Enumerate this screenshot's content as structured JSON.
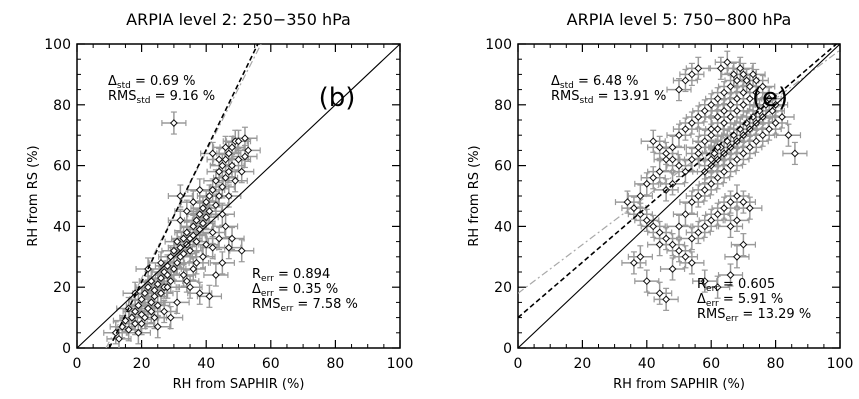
{
  "chart_data": [
    {
      "type": "scatter",
      "title": "ARPIA level 2: 250−350 hPa",
      "panel_label": "(b)",
      "xlabel": "RH from SAPHIR (%)",
      "ylabel": "RH from RS (%)",
      "xlim": [
        0,
        100
      ],
      "ylim": [
        0,
        100
      ],
      "x_ticks": [
        "0",
        "20",
        "40",
        "60",
        "80",
        "100"
      ],
      "y_ticks": [
        "0",
        "20",
        "40",
        "60",
        "80",
        "100"
      ],
      "stats_top": [
        {
          "sym": "Δ",
          "sub": "std",
          "value": "0.69 %"
        },
        {
          "sym": "RMS",
          "sub": "std",
          "value": "9.16 %"
        }
      ],
      "stats_bottom": [
        {
          "sym": "R",
          "sub": "err",
          "value": "0.894"
        },
        {
          "sym": "Δ",
          "sub": "err",
          "value": "0.35 %"
        },
        {
          "sym": "RMS",
          "sub": "err",
          "value": "7.58 %"
        }
      ],
      "lines": {
        "one_to_one": [
          [
            0,
            0
          ],
          [
            100,
            100
          ]
        ],
        "fit_dashed": [
          [
            10,
            0
          ],
          [
            56,
            100
          ]
        ],
        "fit_dashdot": [
          [
            9,
            0
          ],
          [
            57,
            100
          ]
        ]
      },
      "points": [
        [
          12,
          5
        ],
        [
          14,
          7
        ],
        [
          13,
          3
        ],
        [
          15,
          9
        ],
        [
          16,
          6
        ],
        [
          17,
          10
        ],
        [
          18,
          12
        ],
        [
          18,
          8
        ],
        [
          19,
          14
        ],
        [
          20,
          11
        ],
        [
          20,
          16
        ],
        [
          21,
          18
        ],
        [
          22,
          13
        ],
        [
          22,
          20
        ],
        [
          23,
          15
        ],
        [
          23,
          22
        ],
        [
          24,
          17
        ],
        [
          24,
          19
        ],
        [
          25,
          21
        ],
        [
          25,
          14
        ],
        [
          26,
          23
        ],
        [
          26,
          18
        ],
        [
          27,
          25
        ],
        [
          27,
          20
        ],
        [
          28,
          24
        ],
        [
          28,
          27
        ],
        [
          29,
          22
        ],
        [
          29,
          30
        ],
        [
          30,
          26
        ],
        [
          30,
          32
        ],
        [
          31,
          28
        ],
        [
          31,
          35
        ],
        [
          32,
          30
        ],
        [
          32,
          33
        ],
        [
          33,
          36
        ],
        [
          33,
          31
        ],
        [
          34,
          34
        ],
        [
          34,
          38
        ],
        [
          35,
          36
        ],
        [
          35,
          32
        ],
        [
          36,
          40
        ],
        [
          36,
          37
        ],
        [
          37,
          42
        ],
        [
          37,
          35
        ],
        [
          38,
          44
        ],
        [
          38,
          39
        ],
        [
          39,
          46
        ],
        [
          39,
          41
        ],
        [
          40,
          48
        ],
        [
          40,
          43
        ],
        [
          41,
          50
        ],
        [
          41,
          45
        ],
        [
          42,
          52
        ],
        [
          42,
          38
        ],
        [
          43,
          55
        ],
        [
          43,
          47
        ],
        [
          44,
          58
        ],
        [
          44,
          50
        ],
        [
          45,
          60
        ],
        [
          45,
          53
        ],
        [
          46,
          62
        ],
        [
          46,
          56
        ],
        [
          47,
          64
        ],
        [
          47,
          58
        ],
        [
          48,
          66
        ],
        [
          48,
          60
        ],
        [
          49,
          68
        ],
        [
          50,
          62
        ],
        [
          50,
          68
        ],
        [
          52,
          69
        ],
        [
          53,
          65
        ],
        [
          51,
          32
        ],
        [
          30,
          74
        ],
        [
          32,
          50
        ],
        [
          35,
          20
        ],
        [
          38,
          18
        ],
        [
          41,
          17
        ],
        [
          43,
          24
        ],
        [
          45,
          28
        ],
        [
          47,
          33
        ],
        [
          48,
          36
        ],
        [
          27,
          12
        ],
        [
          29,
          10
        ],
        [
          31,
          15
        ],
        [
          24,
          10
        ],
        [
          20,
          8
        ],
        [
          16,
          13
        ],
        [
          22,
          26
        ],
        [
          26,
          28
        ],
        [
          28,
          20
        ],
        [
          33,
          24
        ],
        [
          36,
          26
        ],
        [
          39,
          30
        ],
        [
          42,
          33
        ],
        [
          44,
          36
        ],
        [
          46,
          40
        ],
        [
          40,
          34
        ],
        [
          37,
          28
        ],
        [
          34,
          22
        ],
        [
          21,
          10
        ],
        [
          19,
          5
        ],
        [
          25,
          7
        ],
        [
          23,
          12
        ],
        [
          18,
          18
        ],
        [
          45,
          44
        ],
        [
          47,
          50
        ],
        [
          49,
          55
        ],
        [
          51,
          58
        ],
        [
          52,
          63
        ],
        [
          42,
          64
        ],
        [
          44,
          62
        ],
        [
          46,
          66
        ],
        [
          38,
          52
        ],
        [
          36,
          48
        ],
        [
          34,
          45
        ],
        [
          32,
          42
        ]
      ]
    },
    {
      "type": "scatter",
      "title": "ARPIA level 5: 750−800 hPa",
      "panel_label": "(e)",
      "xlabel": "RH from SAPHIR (%)",
      "ylabel": "RH from RS (%)",
      "xlim": [
        0,
        100
      ],
      "ylim": [
        0,
        100
      ],
      "x_ticks": [
        "0",
        "20",
        "40",
        "60",
        "80",
        "100"
      ],
      "y_ticks": [
        "0",
        "20",
        "40",
        "60",
        "80",
        "100"
      ],
      "stats_top": [
        {
          "sym": "Δ",
          "sub": "std",
          "value": "6.48 %"
        },
        {
          "sym": "RMS",
          "sub": "std",
          "value": "13.91 %"
        }
      ],
      "stats_bottom": [
        {
          "sym": "R",
          "sub": "err",
          "value": "0.605"
        },
        {
          "sym": "Δ",
          "sub": "err",
          "value": "5.91 %"
        },
        {
          "sym": "RMS",
          "sub": "err",
          "value": "13.29 %"
        }
      ],
      "lines": {
        "one_to_one": [
          [
            0,
            0
          ],
          [
            100,
            100
          ]
        ],
        "fit_dashed": [
          [
            0,
            10
          ],
          [
            100,
            101
          ]
        ],
        "fit_dashdot": [
          [
            0,
            18
          ],
          [
            100,
            98
          ]
        ]
      },
      "points": [
        [
          34,
          48
        ],
        [
          36,
          46
        ],
        [
          38,
          44
        ],
        [
          40,
          42
        ],
        [
          42,
          40
        ],
        [
          44,
          38
        ],
        [
          46,
          36
        ],
        [
          48,
          34
        ],
        [
          50,
          32
        ],
        [
          52,
          30
        ],
        [
          54,
          28
        ],
        [
          44,
          34
        ],
        [
          38,
          30
        ],
        [
          36,
          28
        ],
        [
          40,
          22
        ],
        [
          44,
          18
        ],
        [
          46,
          16
        ],
        [
          48,
          26
        ],
        [
          50,
          40
        ],
        [
          52,
          44
        ],
        [
          54,
          48
        ],
        [
          56,
          50
        ],
        [
          58,
          52
        ],
        [
          60,
          54
        ],
        [
          62,
          56
        ],
        [
          64,
          58
        ],
        [
          66,
          60
        ],
        [
          68,
          62
        ],
        [
          70,
          64
        ],
        [
          72,
          66
        ],
        [
          74,
          68
        ],
        [
          76,
          70
        ],
        [
          78,
          72
        ],
        [
          80,
          74
        ],
        [
          86,
          64
        ],
        [
          82,
          76
        ],
        [
          84,
          70
        ],
        [
          60,
          80
        ],
        [
          62,
          82
        ],
        [
          64,
          84
        ],
        [
          66,
          86
        ],
        [
          68,
          88
        ],
        [
          70,
          90
        ],
        [
          58,
          78
        ],
        [
          56,
          76
        ],
        [
          54,
          74
        ],
        [
          52,
          72
        ],
        [
          50,
          70
        ],
        [
          48,
          66
        ],
        [
          46,
          62
        ],
        [
          44,
          58
        ],
        [
          42,
          56
        ],
        [
          40,
          54
        ],
        [
          38,
          50
        ],
        [
          60,
          70
        ],
        [
          62,
          72
        ],
        [
          64,
          74
        ],
        [
          66,
          76
        ],
        [
          68,
          78
        ],
        [
          70,
          80
        ],
        [
          72,
          82
        ],
        [
          74,
          84
        ],
        [
          76,
          86
        ],
        [
          78,
          82
        ],
        [
          80,
          80
        ],
        [
          60,
          60
        ],
        [
          62,
          62
        ],
        [
          64,
          64
        ],
        [
          66,
          66
        ],
        [
          68,
          68
        ],
        [
          70,
          70
        ],
        [
          72,
          72
        ],
        [
          74,
          74
        ],
        [
          76,
          76
        ],
        [
          56,
          66
        ],
        [
          58,
          68
        ],
        [
          60,
          72
        ],
        [
          62,
          76
        ],
        [
          64,
          78
        ],
        [
          66,
          80
        ],
        [
          68,
          82
        ],
        [
          70,
          84
        ],
        [
          72,
          86
        ],
        [
          74,
          88
        ],
        [
          63,
          92
        ],
        [
          65,
          94
        ],
        [
          67,
          90
        ],
        [
          69,
          92
        ],
        [
          71,
          88
        ],
        [
          73,
          90
        ],
        [
          75,
          78
        ],
        [
          77,
          80
        ],
        [
          79,
          78
        ],
        [
          61,
          64
        ],
        [
          63,
          66
        ],
        [
          65,
          68
        ],
        [
          67,
          70
        ],
        [
          69,
          72
        ],
        [
          71,
          74
        ],
        [
          73,
          76
        ],
        [
          58,
          40
        ],
        [
          60,
          42
        ],
        [
          62,
          44
        ],
        [
          64,
          46
        ],
        [
          66,
          48
        ],
        [
          68,
          50
        ],
        [
          70,
          48
        ],
        [
          72,
          46
        ],
        [
          56,
          38
        ],
        [
          54,
          36
        ],
        [
          58,
          22
        ],
        [
          62,
          20
        ],
        [
          66,
          24
        ],
        [
          68,
          30
        ],
        [
          70,
          34
        ],
        [
          66,
          40
        ],
        [
          68,
          42
        ],
        [
          50,
          85
        ],
        [
          52,
          88
        ],
        [
          54,
          90
        ],
        [
          56,
          92
        ],
        [
          50,
          60
        ],
        [
          48,
          62
        ],
        [
          46,
          64
        ],
        [
          44,
          66
        ],
        [
          42,
          68
        ],
        [
          46,
          52
        ],
        [
          48,
          54
        ],
        [
          52,
          58
        ],
        [
          54,
          62
        ],
        [
          56,
          64
        ],
        [
          58,
          58
        ],
        [
          60,
          62
        ],
        [
          62,
          66
        ]
      ]
    }
  ]
}
